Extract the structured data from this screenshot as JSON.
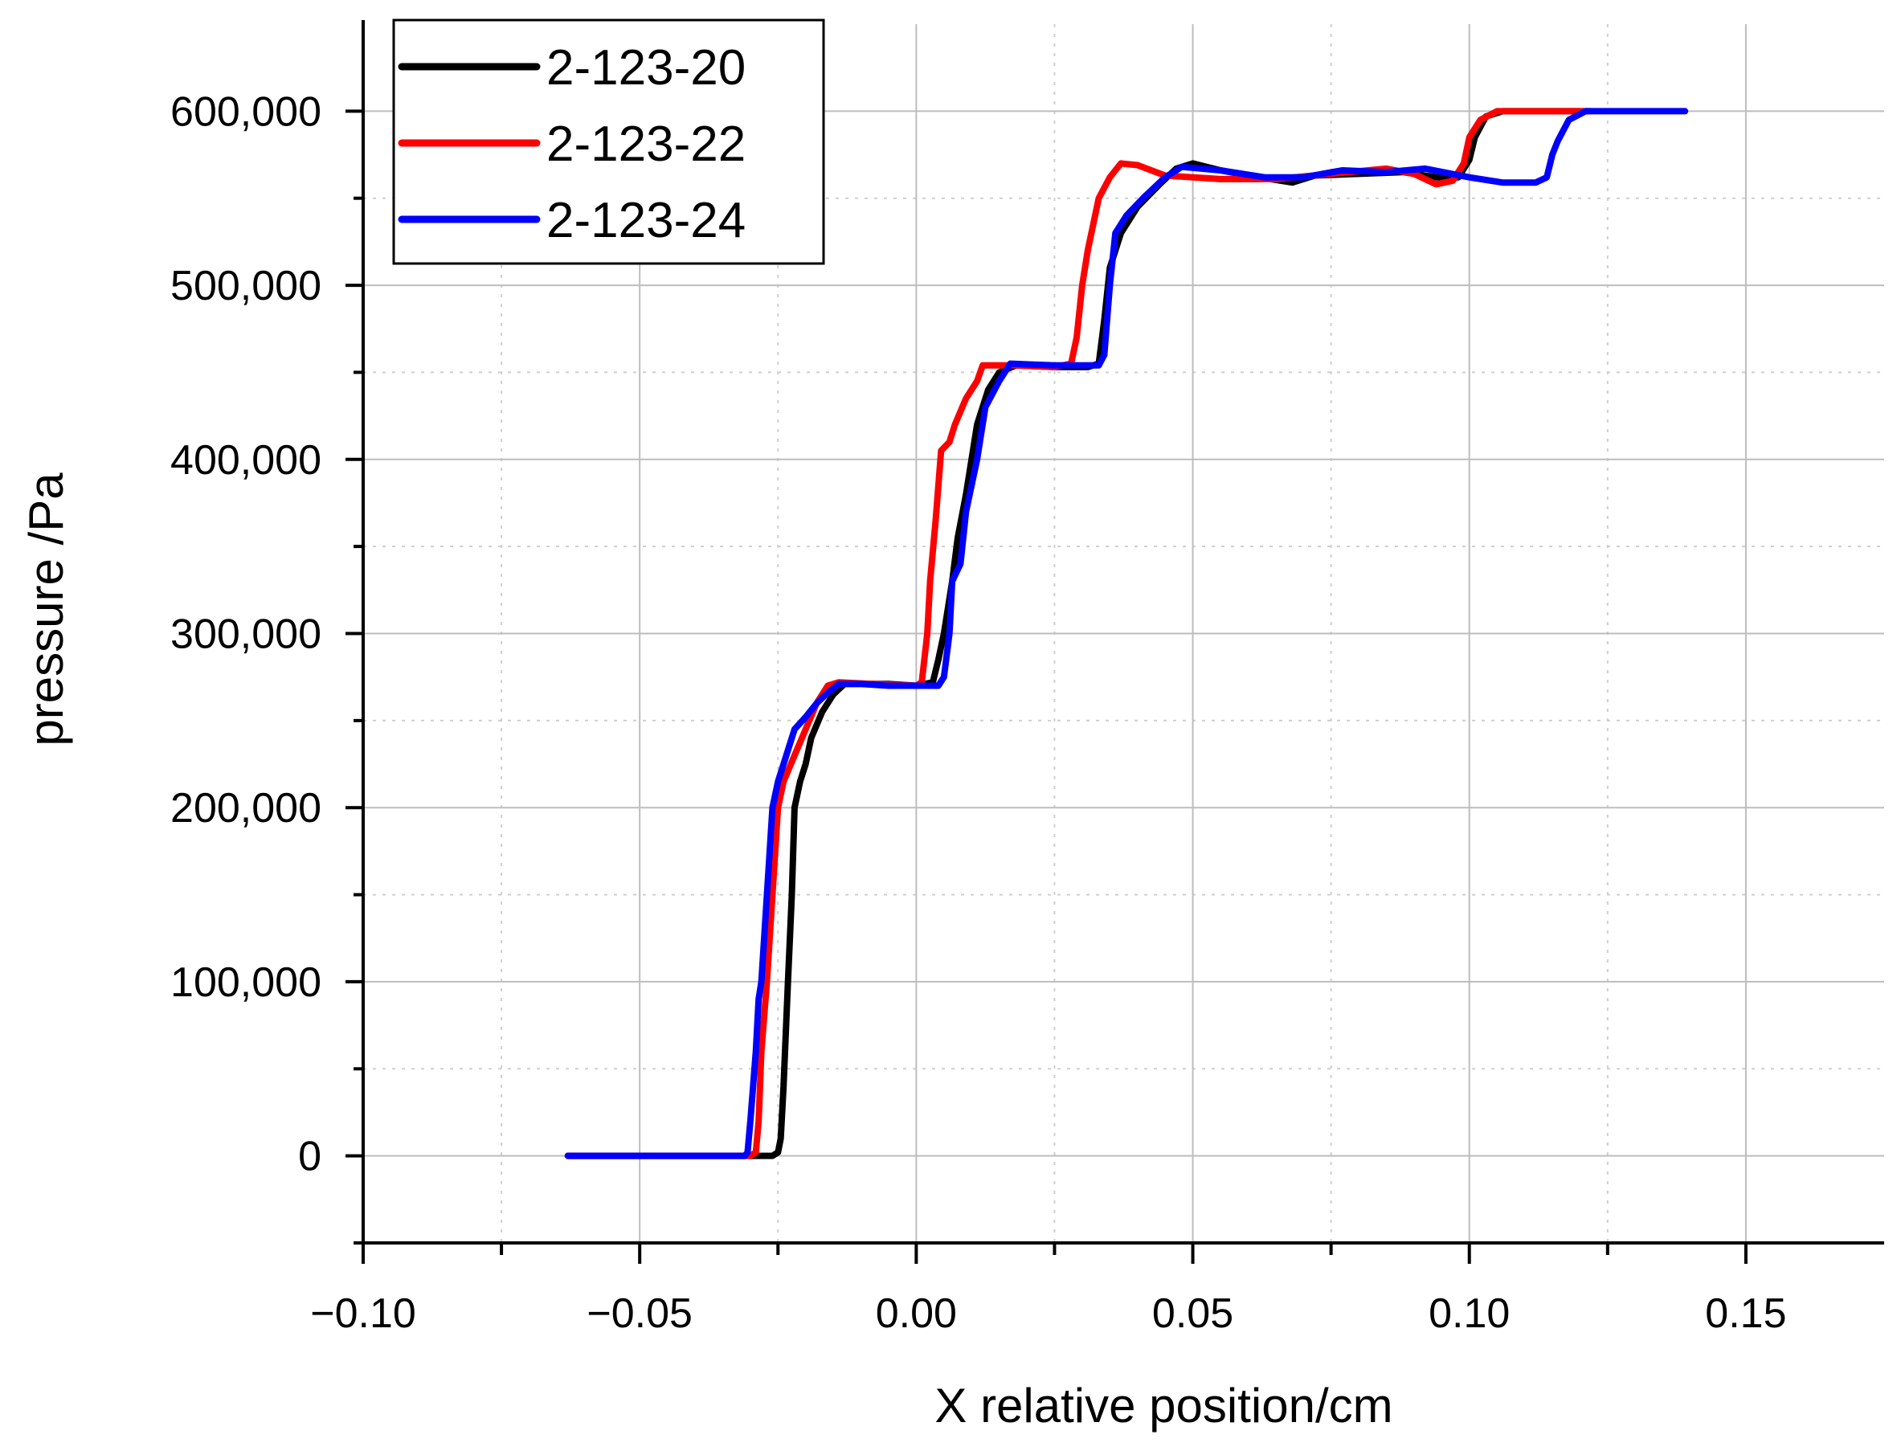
{
  "chart_data": {
    "type": "line",
    "xlabel": "X relative position/cm",
    "ylabel": "pressure /Pa",
    "xlim": [
      -0.1,
      0.175
    ],
    "ylim": [
      -50000,
      650000
    ],
    "x_ticks": [
      "−0.10",
      "−0.05",
      "0.00",
      "0.05",
      "0.10",
      "0.15"
    ],
    "x_tick_values": [
      -0.1,
      -0.05,
      0.0,
      0.05,
      0.1,
      0.15
    ],
    "y_ticks": [
      "0",
      "100,000",
      "200,000",
      "300,000",
      "400,000",
      "500,000",
      "600,000"
    ],
    "y_tick_values": [
      0,
      100000,
      200000,
      300000,
      400000,
      500000,
      600000
    ],
    "grid": true,
    "legend_position": "top-left",
    "series": [
      {
        "name": "2-123-20",
        "color": "#000000",
        "points": [
          [
            -0.063,
            0
          ],
          [
            -0.026,
            0
          ],
          [
            -0.025,
            2000
          ],
          [
            -0.0245,
            10000
          ],
          [
            -0.024,
            40000
          ],
          [
            -0.0232,
            100000
          ],
          [
            -0.0225,
            150000
          ],
          [
            -0.022,
            200000
          ],
          [
            -0.021,
            215000
          ],
          [
            -0.02,
            225000
          ],
          [
            -0.019,
            240000
          ],
          [
            -0.017,
            255000
          ],
          [
            -0.015,
            265000
          ],
          [
            -0.013,
            271000
          ],
          [
            -0.01,
            271000
          ],
          [
            -0.005,
            271000
          ],
          [
            0.0,
            270000
          ],
          [
            0.003,
            272000
          ],
          [
            0.004,
            285000
          ],
          [
            0.005,
            300000
          ],
          [
            0.0065,
            330000
          ],
          [
            0.0075,
            355000
          ],
          [
            0.009,
            380000
          ],
          [
            0.01,
            400000
          ],
          [
            0.011,
            420000
          ],
          [
            0.013,
            440000
          ],
          [
            0.015,
            450000
          ],
          [
            0.018,
            454000
          ],
          [
            0.025,
            453000
          ],
          [
            0.031,
            453000
          ],
          [
            0.033,
            455000
          ],
          [
            0.034,
            480000
          ],
          [
            0.035,
            510000
          ],
          [
            0.037,
            530000
          ],
          [
            0.04,
            545000
          ],
          [
            0.044,
            558000
          ],
          [
            0.047,
            567000
          ],
          [
            0.05,
            570000
          ],
          [
            0.055,
            566000
          ],
          [
            0.062,
            562000
          ],
          [
            0.068,
            559000
          ],
          [
            0.072,
            563000
          ],
          [
            0.08,
            564000
          ],
          [
            0.088,
            565000
          ],
          [
            0.094,
            562000
          ],
          [
            0.098,
            562000
          ],
          [
            0.1,
            572000
          ],
          [
            0.101,
            585000
          ],
          [
            0.103,
            597000
          ],
          [
            0.106,
            600000
          ],
          [
            0.12,
            600000
          ]
        ]
      },
      {
        "name": "2-123-22",
        "color": "#ff0000",
        "points": [
          [
            -0.063,
            0
          ],
          [
            -0.03,
            0
          ],
          [
            -0.029,
            2000
          ],
          [
            -0.0285,
            20000
          ],
          [
            -0.028,
            60000
          ],
          [
            -0.027,
            100000
          ],
          [
            -0.026,
            150000
          ],
          [
            -0.025,
            200000
          ],
          [
            -0.024,
            215000
          ],
          [
            -0.022,
            230000
          ],
          [
            -0.02,
            245000
          ],
          [
            -0.018,
            260000
          ],
          [
            -0.016,
            270000
          ],
          [
            -0.014,
            272000
          ],
          [
            -0.008,
            271000
          ],
          [
            0.0,
            270000
          ],
          [
            0.001,
            272000
          ],
          [
            0.002,
            300000
          ],
          [
            0.0025,
            330000
          ],
          [
            0.0035,
            365000
          ],
          [
            0.0045,
            405000
          ],
          [
            0.006,
            410000
          ],
          [
            0.007,
            420000
          ],
          [
            0.009,
            435000
          ],
          [
            0.011,
            445000
          ],
          [
            0.012,
            454000
          ],
          [
            0.018,
            454000
          ],
          [
            0.025,
            453000
          ],
          [
            0.028,
            455000
          ],
          [
            0.029,
            470000
          ],
          [
            0.03,
            500000
          ],
          [
            0.031,
            520000
          ],
          [
            0.033,
            550000
          ],
          [
            0.035,
            562000
          ],
          [
            0.037,
            570000
          ],
          [
            0.04,
            569000
          ],
          [
            0.045,
            563000
          ],
          [
            0.055,
            561000
          ],
          [
            0.065,
            561000
          ],
          [
            0.075,
            564000
          ],
          [
            0.085,
            567000
          ],
          [
            0.09,
            564000
          ],
          [
            0.094,
            558000
          ],
          [
            0.097,
            560000
          ],
          [
            0.099,
            570000
          ],
          [
            0.1,
            585000
          ],
          [
            0.102,
            595000
          ],
          [
            0.105,
            600000
          ],
          [
            0.122,
            600000
          ]
        ]
      },
      {
        "name": "2-123-24",
        "color": "#0000ff",
        "points": [
          [
            -0.063,
            0
          ],
          [
            -0.031,
            0
          ],
          [
            -0.0305,
            2000
          ],
          [
            -0.03,
            20000
          ],
          [
            -0.029,
            60000
          ],
          [
            -0.0285,
            90000
          ],
          [
            -0.028,
            100000
          ],
          [
            -0.027,
            150000
          ],
          [
            -0.026,
            200000
          ],
          [
            -0.025,
            215000
          ],
          [
            -0.024,
            225000
          ],
          [
            -0.022,
            245000
          ],
          [
            -0.02,
            252000
          ],
          [
            -0.018,
            260000
          ],
          [
            -0.016,
            266000
          ],
          [
            -0.014,
            271000
          ],
          [
            -0.01,
            271000
          ],
          [
            -0.005,
            270000
          ],
          [
            0.0,
            270000
          ],
          [
            0.004,
            270000
          ],
          [
            0.005,
            275000
          ],
          [
            0.006,
            300000
          ],
          [
            0.0065,
            330000
          ],
          [
            0.008,
            340000
          ],
          [
            0.009,
            370000
          ],
          [
            0.011,
            400000
          ],
          [
            0.0125,
            430000
          ],
          [
            0.015,
            445000
          ],
          [
            0.017,
            455000
          ],
          [
            0.025,
            454000
          ],
          [
            0.033,
            454000
          ],
          [
            0.034,
            460000
          ],
          [
            0.035,
            500000
          ],
          [
            0.036,
            530000
          ],
          [
            0.038,
            540000
          ],
          [
            0.041,
            550000
          ],
          [
            0.045,
            562000
          ],
          [
            0.048,
            568000
          ],
          [
            0.055,
            566000
          ],
          [
            0.063,
            562000
          ],
          [
            0.07,
            562000
          ],
          [
            0.077,
            566000
          ],
          [
            0.085,
            565000
          ],
          [
            0.092,
            567000
          ],
          [
            0.1,
            562000
          ],
          [
            0.106,
            559000
          ],
          [
            0.112,
            559000
          ],
          [
            0.114,
            562000
          ],
          [
            0.115,
            575000
          ],
          [
            0.116,
            583000
          ],
          [
            0.118,
            595000
          ],
          [
            0.121,
            600000
          ],
          [
            0.139,
            600000
          ]
        ]
      }
    ]
  }
}
